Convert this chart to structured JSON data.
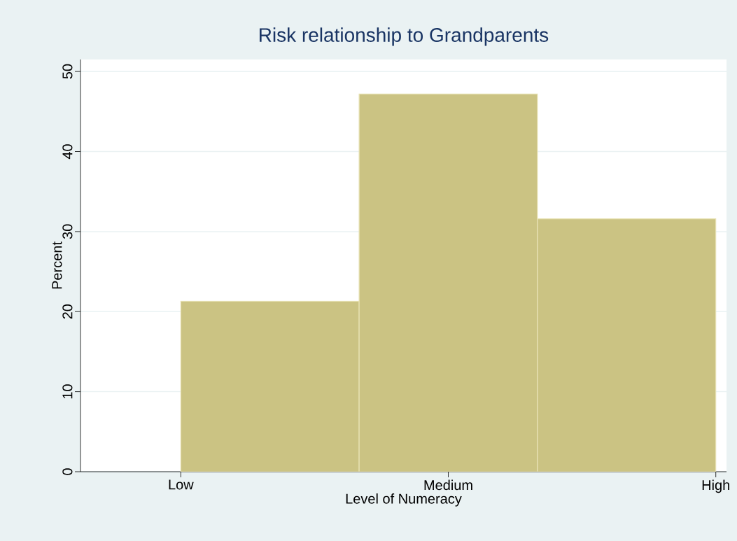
{
  "chart_data": {
    "type": "bar",
    "title": "Risk relationship to Grandparents",
    "xlabel": "Level of Numeracy",
    "ylabel": "Percent",
    "categories": [
      "Low",
      "Medium",
      "High"
    ],
    "values": [
      21.3,
      47.2,
      31.6
    ],
    "color": "#cbc383",
    "ylim": [
      0,
      51.5
    ],
    "yticks": [
      0,
      10,
      20,
      30,
      40,
      50
    ],
    "grid": "y"
  }
}
